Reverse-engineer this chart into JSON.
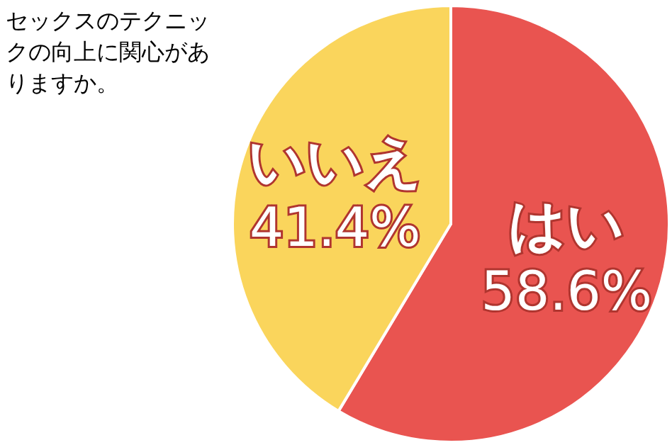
{
  "chart_data": {
    "type": "pie",
    "title": "セックスのテクニックの向上に関心がありますか。",
    "categories": [
      "はい",
      "いいえ"
    ],
    "values": [
      58.6,
      41.4
    ],
    "value_labels": [
      "58.6%",
      "41.4%"
    ],
    "colors": [
      "#e95450",
      "#fad55c"
    ]
  }
}
